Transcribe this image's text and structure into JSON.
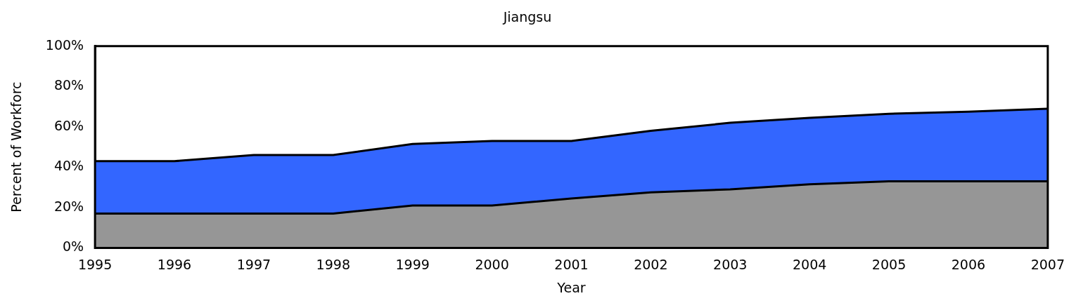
{
  "chart_data": {
    "type": "area",
    "title": "Jiangsu",
    "xlabel": "Year",
    "ylabel": "Percent of Workforc",
    "categories": [
      "1995",
      "1996",
      "1997",
      "1998",
      "1999",
      "2000",
      "2001",
      "2002",
      "2003",
      "2004",
      "2005",
      "2006",
      "2007"
    ],
    "stacked": true,
    "series": [
      {
        "color": "#969696",
        "values": [
          17,
          17,
          17,
          17,
          21,
          21,
          24.5,
          27.5,
          29,
          31.5,
          33,
          33,
          33
        ]
      },
      {
        "color": "#3366ff",
        "values": [
          26,
          26,
          29,
          29,
          30.5,
          32,
          28.5,
          30.5,
          33,
          33,
          33.5,
          34.5,
          36
        ]
      }
    ],
    "ylim": [
      0,
      100
    ],
    "yticks": [
      {
        "value": 0,
        "label": "0%"
      },
      {
        "value": 20,
        "label": "20%"
      },
      {
        "value": 40,
        "label": "40%"
      },
      {
        "value": 60,
        "label": "60%"
      },
      {
        "value": 80,
        "label": "80%"
      },
      {
        "value": 100,
        "label": "100%"
      }
    ],
    "grid": false,
    "legend": false
  }
}
